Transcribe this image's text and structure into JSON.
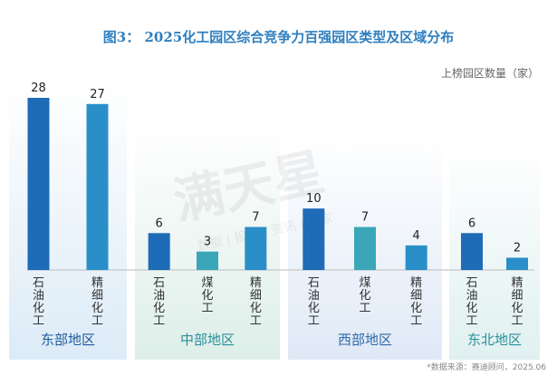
{
  "title": "图3： 2025化工园区综合竞争力百强园区类型及区域分布",
  "unit_label": "上榜园区数量（家）",
  "source_note": "*数据来源：赛迪顾问，2025.06",
  "watermark": {
    "main": "满天星",
    "sub": "数据 | 报告 | 资讯 | 专家"
  },
  "colors": {
    "石油化工": "#1e6bb8",
    "精细化工": "#2a8fc8",
    "煤化工": "#3aa6b8"
  },
  "regions": [
    {
      "name": "东部地区",
      "bg": "#dcebf7",
      "label_color": "#1e5b9b"
    },
    {
      "name": "中部地区",
      "bg": "#ddeee8",
      "label_color": "#2a8f9a"
    },
    {
      "name": "西部地区",
      "bg": "#dfe9f6",
      "label_color": "#2d6aa8"
    },
    {
      "name": "东北地区",
      "bg": "#e0f0f0",
      "label_color": "#2a8f9a"
    }
  ],
  "chart_data": {
    "type": "bar",
    "ylabel": "上榜园区数量（家）",
    "ylim": [
      0,
      30
    ],
    "grid": false,
    "groups": [
      {
        "region": "东部地区",
        "categories": [
          "石油化工",
          "精细化工"
        ],
        "values": [
          28,
          27
        ]
      },
      {
        "region": "中部地区",
        "categories": [
          "石油化工",
          "煤化工",
          "精细化工"
        ],
        "values": [
          6,
          3,
          7
        ]
      },
      {
        "region": "西部地区",
        "categories": [
          "石油化工",
          "煤化工",
          "精细化工"
        ],
        "values": [
          10,
          7,
          4
        ]
      },
      {
        "region": "东北地区",
        "categories": [
          "石油化工",
          "精细化工"
        ],
        "values": [
          6,
          2
        ]
      }
    ]
  }
}
